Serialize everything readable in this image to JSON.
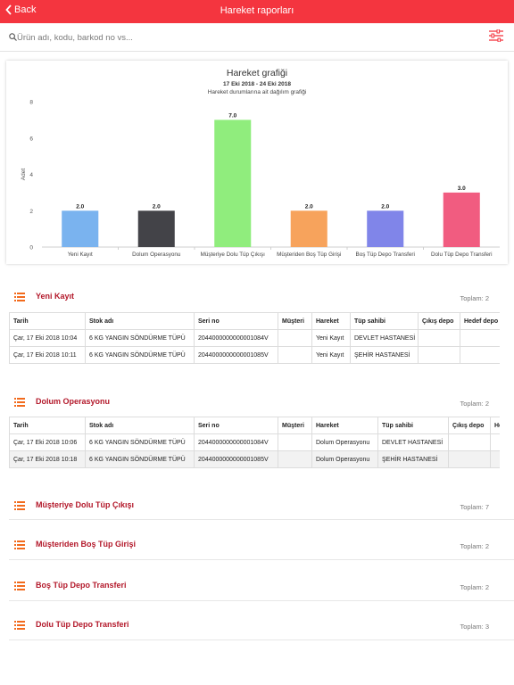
{
  "nav": {
    "back_label": "Back",
    "title": "Hareket raporları"
  },
  "search": {
    "placeholder": "Ürün adı, kodu, barkod no vs..."
  },
  "chart": {
    "title": "Hareket grafiği",
    "date_range": "17 Eki 2018 - 24 Eki 2018",
    "subtitle": "Hareket durumlarına ait dağılım grafiği"
  },
  "chart_data": {
    "type": "bar",
    "categories": [
      "Yeni Kayıt",
      "Dolum Operasyonu",
      "Müşteriye Dolu Tüp Çıkışı",
      "Müşteriden Boş Tüp Girişi",
      "Boş Tüp Depo Transferi",
      "Dolu Tüp Depo Transferi"
    ],
    "values": [
      2.0,
      2.0,
      7.0,
      2.0,
      2.0,
      3.0
    ],
    "value_labels": [
      "2.0",
      "2.0",
      "7.0",
      "2.0",
      "2.0",
      "3.0"
    ],
    "colors": [
      "#7ab3ef",
      "#434348",
      "#90ed7d",
      "#f7a35c",
      "#8085e9",
      "#f15c80"
    ],
    "ylabel": "Adet",
    "ylim": [
      0,
      8
    ],
    "yticks": [
      "0",
      "2",
      "4",
      "6",
      "8"
    ],
    "grid": false,
    "legend": "none"
  },
  "sections": [
    {
      "title": "Yeni Kayıt",
      "total": "Toplam: 2",
      "columns": [
        "Tarih",
        "Stok adı",
        "Seri no",
        "Müşteri",
        "Hareket",
        "Tüp sahibi",
        "Çıkış depo",
        "Hedef depo"
      ],
      "rows": [
        [
          "Çar, 17 Eki 2018 10:04",
          "6 KG YANGIN SÖNDÜRME TÜPÜ",
          "2044000000000001084V",
          "",
          "Yeni Kayıt",
          "DEVLET HASTANESİ",
          "",
          ""
        ],
        [
          "Çar, 17 Eki 2018 10:11",
          "6 KG YANGIN SÖNDÜRME TÜPÜ",
          "2044000000000001085V",
          "",
          "Yeni Kayıt",
          "ŞEHİR HASTANESİ",
          "",
          ""
        ]
      ]
    },
    {
      "title": "Dolum Operasyonu",
      "total": "Toplam: 2",
      "columns": [
        "Tarih",
        "Stok adı",
        "Seri no",
        "Müşteri",
        "Hareket",
        "Tüp sahibi",
        "Çıkış depo",
        "Hedef depo"
      ],
      "rows": [
        [
          "Çar, 17 Eki 2018 10:06",
          "6 KG YANGIN SÖNDÜRME TÜPÜ",
          "2044000000000001084V",
          "",
          "Dolum Operasyonu",
          "DEVLET HASTANESİ",
          "",
          ""
        ],
        [
          "Çar, 17 Eki 2018 10:18",
          "6 KG YANGIN SÖNDÜRME TÜPÜ",
          "2044000000000001085V",
          "",
          "Dolum Operasyonu",
          "ŞEHİR HASTANESİ",
          "",
          ""
        ]
      ]
    },
    {
      "title": "Müşteriye Dolu Tüp Çıkışı",
      "total": "Toplam: 7"
    },
    {
      "title": "Müşteriden Boş Tüp Girişi",
      "total": "Toplam: 2"
    },
    {
      "title": "Boş Tüp Depo Transferi",
      "total": "Toplam: 2"
    },
    {
      "title": "Dolu Tüp Depo Transferi",
      "total": "Toplam: 3"
    }
  ],
  "colors": {
    "accent": "#f4353f",
    "section_title": "#b3182a"
  },
  "icons": {
    "back": "chevron-left-icon",
    "search": "search-icon",
    "filter": "filter-sliders-icon",
    "section": "list-icon"
  }
}
